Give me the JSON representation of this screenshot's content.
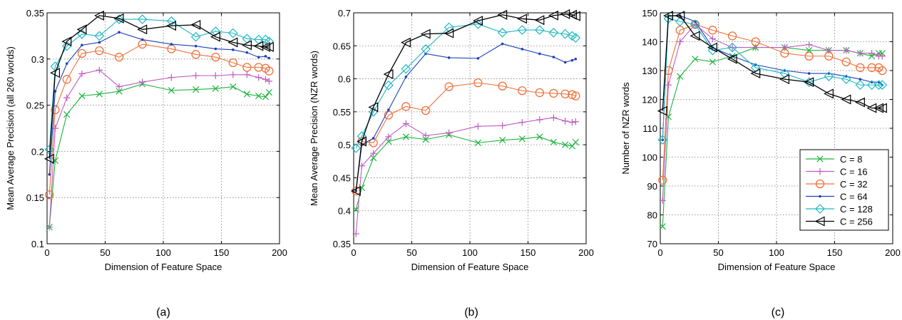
{
  "figure": {
    "captions": [
      "(a)",
      "(b)",
      "(c)"
    ]
  },
  "legend": [
    {
      "label": "C = 8",
      "color": "#1eb33c",
      "marker": "x"
    },
    {
      "label": "C = 16",
      "color": "#c35bc3",
      "marker": "plus"
    },
    {
      "label": "C = 32",
      "color": "#f0703a",
      "marker": "circle"
    },
    {
      "label": "C = 64",
      "color": "#1e40b8",
      "marker": "dot"
    },
    {
      "label": "C = 128",
      "color": "#1fb7c4",
      "marker": "diamond"
    },
    {
      "label": "C = 256",
      "color": "#000000",
      "marker": "triangle-left"
    }
  ],
  "chart_data": [
    {
      "type": "line",
      "xlabel": "Dimension of Feature Space",
      "ylabel": "Mean Average Precision (all 260 words)",
      "xlim": [
        0,
        200
      ],
      "ylim": [
        0.1,
        0.35
      ],
      "xticks": [
        0,
        50,
        100,
        150,
        200
      ],
      "xtick_labels": [
        "0",
        "50",
        "100",
        "150",
        "200"
      ],
      "yticks": [
        0.1,
        0.15,
        0.2,
        0.25,
        0.3,
        0.35
      ],
      "ytick_labels": [
        "0.1",
        "0.15",
        "0.2",
        "0.25",
        "0.3",
        "0.35"
      ],
      "grid": true,
      "x": [
        2,
        7,
        17,
        30,
        45,
        62,
        82,
        107,
        128,
        145,
        160,
        172,
        182,
        188,
        191
      ],
      "series": [
        {
          "name": "C = 8",
          "values": [
            0.118,
            0.19,
            0.24,
            0.26,
            0.262,
            0.265,
            0.273,
            0.266,
            0.267,
            0.268,
            0.27,
            0.262,
            0.26,
            0.259,
            0.264
          ]
        },
        {
          "name": "C = 16",
          "values": [
            0.118,
            0.225,
            0.258,
            0.284,
            0.288,
            0.27,
            0.275,
            0.28,
            0.282,
            0.282,
            0.283,
            0.283,
            0.28,
            0.278,
            0.276
          ]
        },
        {
          "name": "C = 32",
          "values": [
            0.153,
            0.245,
            0.278,
            0.306,
            0.309,
            0.302,
            0.316,
            0.311,
            0.305,
            0.302,
            0.296,
            0.291,
            0.291,
            0.29,
            0.287
          ]
        },
        {
          "name": "C = 64",
          "values": [
            0.175,
            0.265,
            0.295,
            0.315,
            0.318,
            0.329,
            0.321,
            0.316,
            0.314,
            0.311,
            0.31,
            0.307,
            0.302,
            0.303,
            0.301
          ]
        },
        {
          "name": "C = 128",
          "values": [
            0.202,
            0.292,
            0.314,
            0.327,
            0.325,
            0.343,
            0.343,
            0.341,
            0.324,
            0.33,
            0.328,
            0.322,
            0.321,
            0.321,
            0.319
          ]
        },
        {
          "name": "C = 256",
          "values": [
            0.192,
            0.285,
            0.319,
            0.332,
            0.347,
            0.344,
            0.332,
            0.336,
            0.337,
            0.324,
            0.318,
            0.315,
            0.314,
            0.313,
            0.313
          ]
        }
      ]
    },
    {
      "type": "line",
      "xlabel": "Dimension of Feature Space",
      "ylabel": "Mean Average Precision (NZR words)",
      "xlim": [
        0,
        200
      ],
      "ylim": [
        0.35,
        0.7
      ],
      "xticks": [
        0,
        50,
        100,
        150,
        200
      ],
      "xtick_labels": [
        "0",
        "50",
        "100",
        "150",
        "200"
      ],
      "yticks": [
        0.35,
        0.4,
        0.45,
        0.5,
        0.55,
        0.6,
        0.65,
        0.7
      ],
      "ytick_labels": [
        "0.35",
        "0.4",
        "0.45",
        "0.5",
        "0.55",
        "0.6",
        "0.65",
        "0.7"
      ],
      "grid": true,
      "x": [
        2,
        7,
        17,
        30,
        45,
        62,
        82,
        107,
        128,
        145,
        160,
        172,
        182,
        188,
        191
      ],
      "series": [
        {
          "name": "C = 8",
          "values": [
            0.402,
            0.435,
            0.48,
            0.505,
            0.512,
            0.508,
            0.515,
            0.503,
            0.507,
            0.509,
            0.512,
            0.504,
            0.5,
            0.498,
            0.504
          ]
        },
        {
          "name": "C = 16",
          "values": [
            0.365,
            0.468,
            0.487,
            0.512,
            0.532,
            0.514,
            0.518,
            0.528,
            0.529,
            0.534,
            0.538,
            0.541,
            0.536,
            0.534,
            0.535
          ]
        },
        {
          "name": "C = 32",
          "values": [
            0.43,
            0.505,
            0.503,
            0.545,
            0.558,
            0.552,
            0.588,
            0.594,
            0.589,
            0.582,
            0.579,
            0.578,
            0.577,
            0.576,
            0.574
          ]
        },
        {
          "name": "C = 64",
          "values": [
            0.43,
            0.5,
            0.51,
            0.553,
            0.603,
            0.638,
            0.632,
            0.631,
            0.653,
            0.645,
            0.638,
            0.633,
            0.625,
            0.628,
            0.63
          ]
        },
        {
          "name": "C = 128",
          "values": [
            0.495,
            0.513,
            0.55,
            0.59,
            0.615,
            0.645,
            0.678,
            0.683,
            0.67,
            0.674,
            0.674,
            0.67,
            0.668,
            0.665,
            0.662
          ]
        },
        {
          "name": "C = 256",
          "values": [
            0.43,
            0.505,
            0.557,
            0.607,
            0.655,
            0.668,
            0.669,
            0.688,
            0.697,
            0.691,
            0.689,
            0.696,
            0.698,
            0.697,
            0.695
          ]
        }
      ]
    },
    {
      "type": "line",
      "xlabel": "Dimension of Feature Space",
      "ylabel": "Number of NZR words",
      "xlim": [
        0,
        200
      ],
      "ylim": [
        70,
        150
      ],
      "xticks": [
        0,
        50,
        100,
        150,
        200
      ],
      "xtick_labels": [
        "0",
        "50",
        "100",
        "150",
        "200"
      ],
      "yticks": [
        70,
        80,
        90,
        100,
        110,
        120,
        130,
        140,
        150
      ],
      "ytick_labels": [
        "70",
        "80",
        "90",
        "100",
        "110",
        "120",
        "130",
        "140",
        "150"
      ],
      "grid": true,
      "legend_position": "bottom-right",
      "x": [
        2,
        7,
        17,
        30,
        45,
        62,
        82,
        107,
        128,
        145,
        160,
        172,
        182,
        188,
        191
      ],
      "series": [
        {
          "name": "C = 8",
          "values": [
            76,
            114,
            128,
            134,
            133,
            135,
            138,
            138,
            137,
            137,
            137,
            136,
            135,
            136,
            136
          ]
        },
        {
          "name": "C = 16",
          "values": [
            85,
            125,
            140,
            146,
            141,
            138,
            138,
            138,
            139,
            137,
            137,
            136,
            136,
            135,
            135
          ]
        },
        {
          "name": "C = 32",
          "values": [
            92,
            130,
            144,
            146,
            144,
            142,
            140,
            136,
            135,
            135,
            133,
            131,
            131,
            131,
            130
          ]
        },
        {
          "name": "C = 64",
          "values": [
            106,
            149,
            149,
            147,
            138,
            135,
            132,
            130,
            129,
            129,
            128,
            127,
            126,
            126,
            125
          ]
        },
        {
          "name": "C = 128",
          "values": [
            106,
            148,
            147,
            146,
            137,
            138,
            131,
            129,
            126,
            128,
            127,
            125,
            125,
            125,
            125
          ]
        },
        {
          "name": "C = 256",
          "values": [
            116,
            149,
            149,
            142,
            138,
            134,
            129,
            127,
            126,
            122,
            120,
            119,
            117,
            117,
            117
          ]
        }
      ]
    }
  ]
}
